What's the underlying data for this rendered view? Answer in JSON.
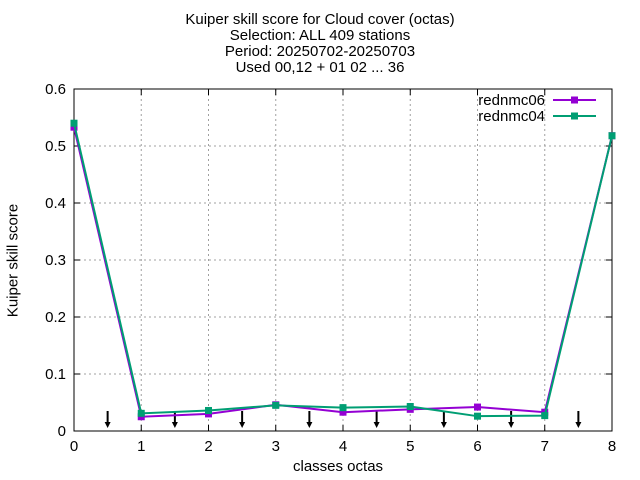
{
  "chart_data": {
    "type": "line",
    "title_lines": [
      "Kuiper skill score  for Cloud cover (octas)",
      "Selection: ALL    409 stations",
      "Period: 20250702-20250703",
      "Used 00,12 + 01 02 ... 36"
    ],
    "xlabel": "classes octas",
    "ylabel": "Kuiper skill score",
    "xlim": [
      0,
      8
    ],
    "ylim": [
      0,
      0.6
    ],
    "xticks": [
      "0",
      "1",
      "2",
      "3",
      "4",
      "5",
      "6",
      "7",
      "8"
    ],
    "yticks": [
      "0",
      "0.1",
      "0.2",
      "0.3",
      "0.4",
      "0.5",
      "0.6"
    ],
    "grid": true,
    "legend_position": "top-right",
    "x": [
      0,
      1,
      2,
      3,
      4,
      5,
      6,
      7,
      8
    ],
    "series": [
      {
        "name": "rednmc06",
        "color": "#9400d3",
        "values": [
          0.533,
          0.025,
          0.03,
          0.046,
          0.033,
          0.038,
          0.042,
          0.033,
          0.518
        ]
      },
      {
        "name": "rednmc04",
        "color": "#009e73",
        "values": [
          0.54,
          0.031,
          0.036,
          0.045,
          0.041,
          0.043,
          0.026,
          0.027,
          0.518
        ]
      }
    ],
    "arrows_x": [
      0.5,
      1.5,
      2.5,
      3.5,
      4.5,
      5.5,
      6.5,
      7.5
    ]
  }
}
